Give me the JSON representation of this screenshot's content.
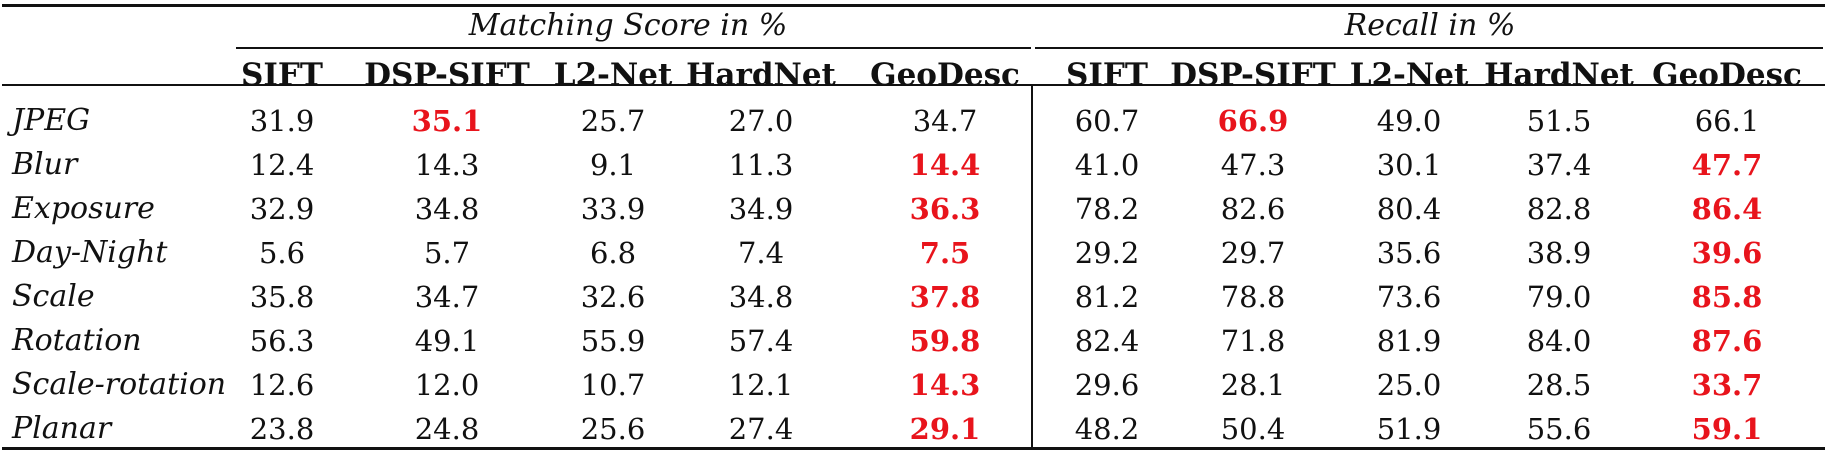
{
  "groups": [
    {
      "label": "Matching Score in %"
    },
    {
      "label": "Recall in %"
    }
  ],
  "columns": [
    "SIFT",
    "DSP-SIFT",
    "L2-Net",
    "HardNet",
    "GeoDesc",
    "SIFT",
    "DSP-SIFT",
    "L2-Net",
    "HardNet",
    "GeoDesc"
  ],
  "highlight_color": "#e8141c",
  "rows": [
    {
      "label": "JPEG",
      "values": [
        "31.9",
        "35.1",
        "25.7",
        "27.0",
        "34.7",
        "60.7",
        "66.9",
        "49.0",
        "51.5",
        "66.1"
      ],
      "best": [
        1,
        6
      ]
    },
    {
      "label": "Blur",
      "values": [
        "12.4",
        "14.3",
        "9.1",
        "11.3",
        "14.4",
        "41.0",
        "47.3",
        "30.1",
        "37.4",
        "47.7"
      ],
      "best": [
        4,
        9
      ]
    },
    {
      "label": "Exposure",
      "values": [
        "32.9",
        "34.8",
        "33.9",
        "34.9",
        "36.3",
        "78.2",
        "82.6",
        "80.4",
        "82.8",
        "86.4"
      ],
      "best": [
        4,
        9
      ]
    },
    {
      "label": "Day-Night",
      "values": [
        "5.6",
        "5.7",
        "6.8",
        "7.4",
        "7.5",
        "29.2",
        "29.7",
        "35.6",
        "38.9",
        "39.6"
      ],
      "best": [
        4,
        9
      ]
    },
    {
      "label": "Scale",
      "values": [
        "35.8",
        "34.7",
        "32.6",
        "34.8",
        "37.8",
        "81.2",
        "78.8",
        "73.6",
        "79.0",
        "85.8"
      ],
      "best": [
        4,
        9
      ]
    },
    {
      "label": "Rotation",
      "values": [
        "56.3",
        "49.1",
        "55.9",
        "57.4",
        "59.8",
        "82.4",
        "71.8",
        "81.9",
        "84.0",
        "87.6"
      ],
      "best": [
        4,
        9
      ]
    },
    {
      "label": "Scale-rotation",
      "values": [
        "12.6",
        "12.0",
        "10.7",
        "12.1",
        "14.3",
        "29.6",
        "28.1",
        "25.0",
        "28.5",
        "33.7"
      ],
      "best": [
        4,
        9
      ]
    },
    {
      "label": "Planar",
      "values": [
        "23.8",
        "24.8",
        "25.6",
        "27.4",
        "29.1",
        "48.2",
        "50.4",
        "51.9",
        "55.6",
        "59.1"
      ],
      "best": [
        4,
        9
      ]
    }
  ]
}
